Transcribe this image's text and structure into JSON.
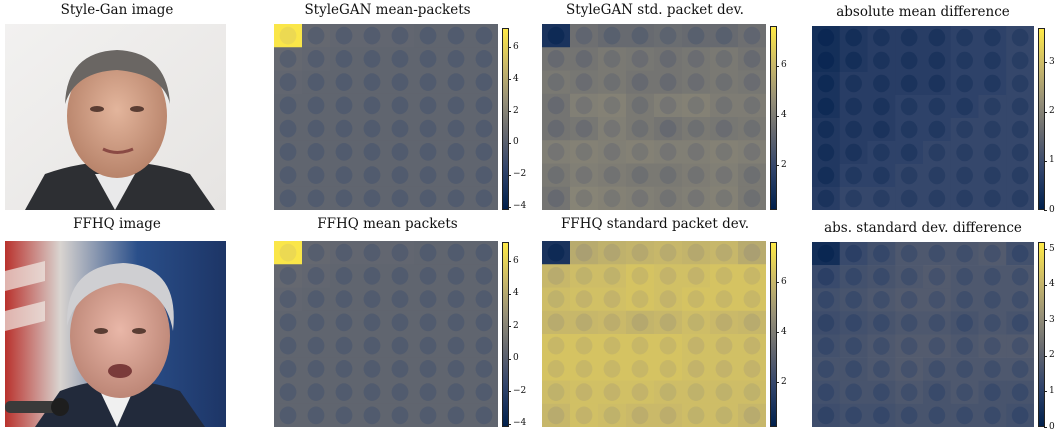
{
  "colormap": [
    "#00204c",
    "#31446b",
    "#666970",
    "#958f78",
    "#cbba69",
    "#ffea46"
  ],
  "panels": [
    {
      "id": "stylegan-image",
      "title": "Style-Gan image",
      "kind": "photo",
      "photo": "stylegan-face"
    },
    {
      "id": "stylegan-mean",
      "title": "StyleGAN mean-packets",
      "kind": "heatmap",
      "colorbar": {
        "min": -4.2,
        "max": 7.2,
        "ticks": [
          -4,
          -2,
          0,
          2,
          4,
          6
        ],
        "tick_labels": [
          "−4",
          "−2",
          "0",
          "2",
          "4",
          "6"
        ]
      }
    },
    {
      "id": "stylegan-std",
      "title": "StyleGAN std. packet dev.",
      "kind": "heatmap",
      "colorbar": {
        "min": 0.2,
        "max": 7.6,
        "ticks": [
          2,
          4,
          6
        ],
        "tick_labels": [
          "2",
          "4",
          "6"
        ]
      }
    },
    {
      "id": "abs-mean-diff",
      "title": "absolute mean difference",
      "kind": "heatmap",
      "colorbar": {
        "min": 0,
        "max": 3.7,
        "ticks": [
          0,
          1,
          2,
          3
        ],
        "tick_labels": [
          "0",
          "1",
          "2",
          "3"
        ]
      }
    },
    {
      "id": "ffhq-image",
      "title": "FFHQ image",
      "kind": "photo",
      "photo": "ffhq-face"
    },
    {
      "id": "ffhq-mean",
      "title": "FFHQ mean packets",
      "kind": "heatmap",
      "colorbar": {
        "min": -4.2,
        "max": 7.2,
        "ticks": [
          -4,
          -2,
          0,
          2,
          4,
          6
        ],
        "tick_labels": [
          "−4",
          "−2",
          "0",
          "2",
          "4",
          "6"
        ]
      }
    },
    {
      "id": "ffhq-std",
      "title": "FFHQ standard packet dev.",
      "kind": "heatmap",
      "colorbar": {
        "min": 0.2,
        "max": 7.6,
        "ticks": [
          2,
          4,
          6
        ],
        "tick_labels": [
          "2",
          "4",
          "6"
        ]
      }
    },
    {
      "id": "abs-std-diff",
      "title": "abs. standard dev. difference",
      "kind": "heatmap",
      "colorbar": {
        "min": 0,
        "max": 5.2,
        "ticks": [
          0,
          1,
          2,
          3,
          4,
          5
        ],
        "tick_labels": [
          "0",
          "1",
          "2",
          "3",
          "4",
          "5"
        ]
      }
    }
  ],
  "chart_data": {
    "type": "heatmap",
    "grid": "8x8 wavelet packet tiles",
    "panels": [
      {
        "title": "StyleGAN mean-packets",
        "colorbar_range": [
          -4.2,
          7.2
        ],
        "tiles": [
          [
            7.0,
            0.3,
            0.2,
            0.2,
            0.2,
            0.1,
            0.1,
            0.1
          ],
          [
            0.3,
            0.2,
            0.1,
            0.1,
            0.1,
            0.1,
            0.1,
            0.1
          ],
          [
            0.2,
            0.1,
            0.1,
            0.1,
            0.1,
            0.1,
            0.1,
            0.1
          ],
          [
            0.1,
            0.1,
            0.1,
            0.1,
            0.1,
            0.1,
            0.1,
            0.1
          ],
          [
            0.1,
            0.1,
            0.1,
            0.1,
            0.1,
            0.1,
            0.1,
            0.1
          ],
          [
            0.1,
            0.1,
            0.1,
            0.1,
            0.1,
            0.1,
            0.1,
            0.1
          ],
          [
            0.1,
            0.1,
            0.1,
            0.1,
            0.1,
            0.1,
            0.1,
            0.1
          ],
          [
            0.1,
            0.1,
            0.1,
            0.1,
            0.1,
            0.1,
            0.1,
            0.1
          ]
        ]
      },
      {
        "title": "StyleGAN std. packet dev.",
        "colorbar_range": [
          0.2,
          7.6
        ],
        "tiles": [
          [
            1.0,
            3.4,
            3.2,
            3.2,
            3.3,
            3.2,
            3.2,
            3.4
          ],
          [
            3.6,
            3.6,
            3.8,
            3.7,
            3.6,
            3.7,
            3.8,
            3.6
          ],
          [
            3.8,
            3.7,
            3.8,
            3.6,
            3.6,
            3.7,
            3.8,
            3.7
          ],
          [
            3.6,
            4.0,
            4.1,
            3.8,
            4.0,
            4.1,
            3.9,
            3.9
          ],
          [
            3.6,
            3.7,
            4.0,
            3.8,
            3.6,
            3.8,
            3.7,
            3.8
          ],
          [
            4.0,
            4.1,
            4.0,
            4.1,
            4.0,
            4.0,
            4.1,
            4.0
          ],
          [
            3.8,
            4.0,
            3.9,
            3.8,
            3.8,
            3.9,
            4.0,
            3.8
          ],
          [
            3.6,
            4.2,
            4.1,
            4.0,
            3.9,
            4.0,
            4.1,
            3.8
          ]
        ]
      },
      {
        "title": "absolute mean difference",
        "colorbar_range": [
          0,
          3.7
        ],
        "tiles": [
          [
            0.3,
            0.5,
            0.6,
            0.6,
            0.6,
            0.7,
            0.7,
            0.8
          ],
          [
            0.3,
            0.5,
            0.6,
            0.6,
            0.6,
            0.7,
            0.7,
            0.8
          ],
          [
            0.4,
            0.6,
            0.6,
            0.6,
            0.6,
            0.7,
            0.7,
            0.8
          ],
          [
            0.4,
            0.6,
            0.6,
            0.7,
            0.7,
            0.7,
            0.8,
            0.8
          ],
          [
            0.5,
            0.6,
            0.6,
            0.7,
            0.7,
            0.8,
            0.8,
            0.8
          ],
          [
            0.5,
            0.6,
            0.7,
            0.7,
            0.8,
            0.8,
            0.8,
            0.8
          ],
          [
            0.5,
            0.7,
            0.7,
            0.8,
            0.8,
            0.8,
            0.8,
            0.8
          ],
          [
            0.6,
            0.8,
            0.8,
            0.8,
            0.8,
            0.8,
            0.8,
            0.8
          ]
        ]
      },
      {
        "title": "FFHQ mean packets",
        "colorbar_range": [
          -4.2,
          7.2
        ],
        "tiles": [
          [
            7.0,
            0.3,
            0.2,
            0.2,
            0.2,
            0.1,
            0.1,
            0.1
          ],
          [
            0.3,
            0.2,
            0.1,
            0.1,
            0.1,
            0.1,
            0.1,
            0.1
          ],
          [
            0.2,
            0.1,
            0.1,
            0.1,
            0.1,
            0.1,
            0.1,
            0.1
          ],
          [
            0.1,
            0.1,
            0.1,
            0.1,
            0.1,
            0.1,
            0.1,
            0.1
          ],
          [
            0.1,
            0.1,
            0.1,
            0.1,
            0.1,
            0.1,
            0.1,
            0.1
          ],
          [
            0.1,
            0.1,
            0.1,
            0.1,
            0.1,
            0.1,
            0.1,
            0.1
          ],
          [
            0.1,
            0.1,
            0.1,
            0.1,
            0.1,
            0.1,
            0.1,
            0.1
          ],
          [
            0.1,
            0.1,
            0.1,
            0.1,
            0.1,
            0.1,
            0.1,
            0.1
          ]
        ]
      },
      {
        "title": "FFHQ standard packet dev.",
        "colorbar_range": [
          0.2,
          7.6
        ],
        "tiles": [
          [
            1.0,
            5.6,
            5.8,
            5.9,
            6.0,
            5.9,
            6.0,
            5.6
          ],
          [
            6.0,
            6.2,
            6.2,
            6.4,
            6.3,
            6.3,
            6.4,
            6.4
          ],
          [
            6.2,
            6.3,
            6.3,
            6.4,
            6.3,
            6.4,
            6.4,
            6.4
          ],
          [
            6.0,
            6.0,
            6.1,
            5.9,
            6.0,
            6.2,
            6.1,
            6.0
          ],
          [
            6.4,
            6.4,
            6.4,
            6.4,
            6.4,
            6.3,
            6.3,
            6.3
          ],
          [
            6.4,
            6.4,
            6.4,
            6.4,
            6.4,
            6.3,
            6.3,
            6.3
          ],
          [
            6.2,
            6.3,
            6.3,
            6.3,
            6.2,
            6.2,
            6.2,
            6.2
          ],
          [
            6.0,
            6.3,
            6.2,
            6.1,
            6.1,
            6.2,
            6.2,
            6.0
          ]
        ]
      },
      {
        "title": "abs. standard dev. difference",
        "colorbar_range": [
          0,
          5.2
        ],
        "tiles": [
          [
            0.4,
            1.2,
            1.4,
            1.6,
            1.6,
            1.6,
            1.7,
            1.4
          ],
          [
            1.2,
            1.4,
            1.5,
            1.6,
            1.7,
            1.6,
            1.6,
            1.6
          ],
          [
            1.4,
            1.5,
            1.6,
            1.7,
            1.7,
            1.6,
            1.6,
            1.6
          ],
          [
            1.3,
            1.4,
            1.5,
            1.6,
            1.6,
            1.5,
            1.6,
            1.5
          ],
          [
            1.4,
            1.5,
            1.6,
            1.7,
            1.7,
            1.6,
            1.7,
            1.7
          ],
          [
            1.5,
            1.5,
            1.6,
            1.7,
            1.6,
            1.6,
            1.6,
            1.6
          ],
          [
            1.4,
            1.5,
            1.5,
            1.6,
            1.5,
            1.6,
            1.5,
            1.5
          ],
          [
            1.3,
            1.4,
            1.4,
            1.5,
            1.5,
            1.5,
            1.5,
            1.4
          ]
        ]
      }
    ]
  }
}
